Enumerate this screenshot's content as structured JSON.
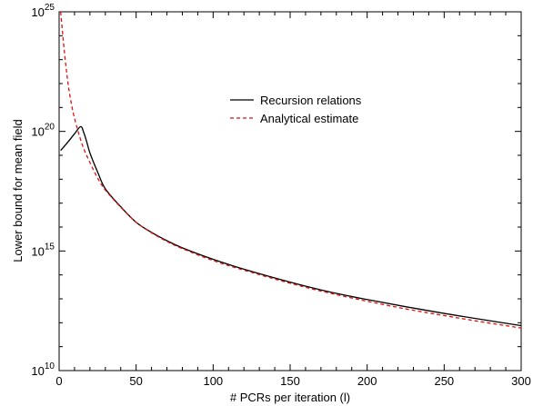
{
  "chart_data": {
    "type": "line",
    "xlabel": "# PCRs per iteration (l)",
    "ylabel": "Lower bound for mean field",
    "xlim": [
      0,
      300
    ],
    "ylim": [
      10,
      25
    ],
    "y_scale": "log10",
    "x_ticks": [
      "0",
      "50",
      "100",
      "150",
      "200",
      "250",
      "300"
    ],
    "x_tick_values": [
      0,
      50,
      100,
      150,
      200,
      250,
      300
    ],
    "y_ticks": [
      {
        "base": "10",
        "exp": "10",
        "value": 10
      },
      {
        "base": "10",
        "exp": "15",
        "value": 15
      },
      {
        "base": "10",
        "exp": "20",
        "value": 20
      },
      {
        "base": "10",
        "exp": "25",
        "value": 25
      }
    ],
    "grid": false,
    "legend_position": "upper-right-center",
    "series": [
      {
        "name": "Recursion relations",
        "color": "#000000",
        "dash": "solid",
        "x": [
          1,
          5,
          10,
          14,
          16,
          18,
          20,
          25,
          30,
          40,
          50,
          60,
          70,
          80,
          100,
          120,
          150,
          175,
          200,
          225,
          250,
          275,
          300
        ],
        "y": [
          19.2,
          19.5,
          19.9,
          20.2,
          19.95,
          19.55,
          19.1,
          18.3,
          17.6,
          16.85,
          16.2,
          15.78,
          15.43,
          15.13,
          14.65,
          14.24,
          13.7,
          13.3,
          12.97,
          12.67,
          12.39,
          12.13,
          11.88
        ]
      },
      {
        "name": "Analytical estimate",
        "color": "#e01010",
        "dash": "dashed",
        "x": [
          1,
          2,
          3,
          5,
          7,
          10,
          15,
          20,
          25,
          30,
          40,
          50,
          60,
          70,
          80,
          100,
          120,
          150,
          175,
          200,
          225,
          250,
          275,
          300
        ],
        "y": [
          25.0,
          24.3,
          23.6,
          22.4,
          21.5,
          20.55,
          19.45,
          18.7,
          18.05,
          17.55,
          16.83,
          16.2,
          15.76,
          15.4,
          15.1,
          14.6,
          14.2,
          13.65,
          13.25,
          12.9,
          12.58,
          12.3,
          12.03,
          11.78
        ]
      }
    ]
  }
}
